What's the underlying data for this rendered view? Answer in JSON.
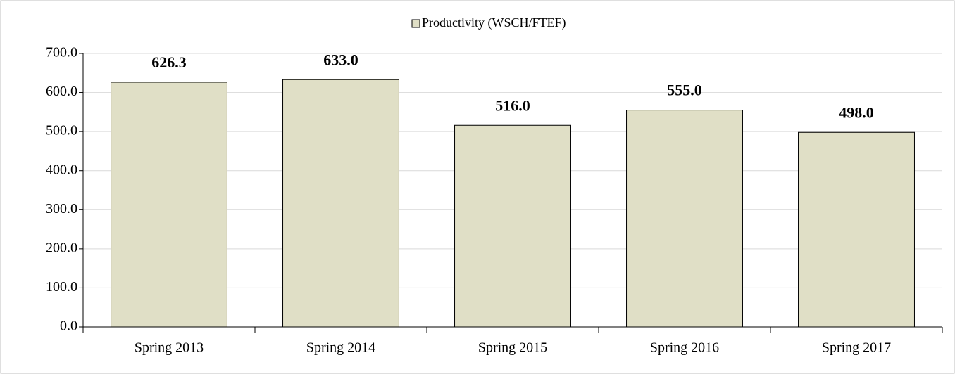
{
  "chart_data": {
    "type": "bar",
    "categories": [
      "Spring 2013",
      "Spring 2014",
      "Spring 2015",
      "Spring 2016",
      "Spring 2017"
    ],
    "series": [
      {
        "name": "Productivity (WSCH/FTEF)",
        "color": "#e0dfc6",
        "values": [
          626.3,
          633,
          516,
          555,
          498
        ],
        "value_labels": [
          "626.3",
          "633.0",
          "516.0",
          "555.0",
          "498.0"
        ]
      }
    ],
    "ylim": [
      0,
      700
    ],
    "yticks": [
      {
        "value": 0,
        "label": "0.0"
      },
      {
        "value": 100,
        "label": "100.0"
      },
      {
        "value": 200,
        "label": "200.0"
      },
      {
        "value": 300,
        "label": "300.0"
      },
      {
        "value": 400,
        "label": "400.0"
      },
      {
        "value": 500,
        "label": "500.0"
      },
      {
        "value": 600,
        "label": "600.0"
      },
      {
        "value": 700,
        "label": "700.0"
      }
    ],
    "grid": true,
    "legend": "top"
  }
}
